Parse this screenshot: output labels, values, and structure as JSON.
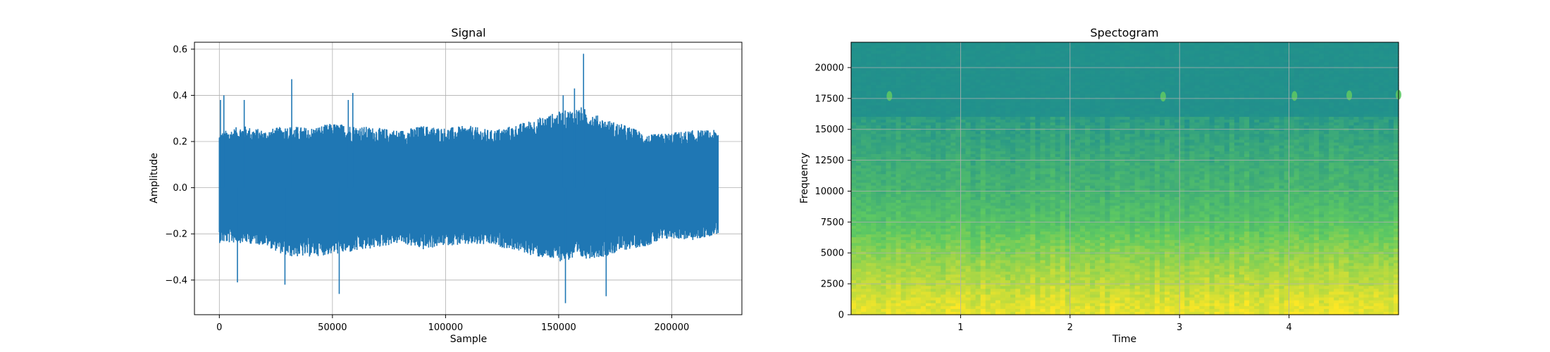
{
  "chart_data": [
    {
      "type": "line",
      "title": "Signal",
      "xlabel": "Sample",
      "ylabel": "Amplitude",
      "xlim": [
        -11000,
        231000
      ],
      "ylim": [
        -0.55,
        0.63
      ],
      "grid": true,
      "xticks": [
        0,
        50000,
        100000,
        150000,
        200000
      ],
      "xtick_labels": [
        "0",
        "50000",
        "100000",
        "150000",
        "200000"
      ],
      "yticks": [
        -0.4,
        -0.2,
        0.0,
        0.2,
        0.4,
        0.6
      ],
      "ytick_labels": [
        "−0.4",
        "−0.2",
        "0.0",
        "0.2",
        "0.4",
        "0.6"
      ],
      "series": [
        {
          "color": "#1f77b4",
          "sample_count": 220500,
          "envelope": {
            "x": [
              0,
              10000,
              20000,
              30000,
              40000,
              50000,
              60000,
              70000,
              80000,
              90000,
              100000,
              110000,
              120000,
              130000,
              140000,
              150000,
              160000,
              170000,
              180000,
              190000,
              200000,
              210000,
              220500
            ],
            "upper": [
              0.24,
              0.27,
              0.25,
              0.27,
              0.26,
              0.28,
              0.27,
              0.26,
              0.25,
              0.27,
              0.26,
              0.27,
              0.25,
              0.27,
              0.3,
              0.33,
              0.35,
              0.3,
              0.27,
              0.23,
              0.24,
              0.25,
              0.25
            ],
            "lower": [
              -0.24,
              -0.24,
              -0.25,
              -0.3,
              -0.3,
              -0.29,
              -0.28,
              -0.26,
              -0.24,
              -0.27,
              -0.25,
              -0.25,
              -0.25,
              -0.27,
              -0.3,
              -0.32,
              -0.31,
              -0.3,
              -0.27,
              -0.25,
              -0.22,
              -0.23,
              -0.2
            ]
          },
          "peaks": [
            {
              "x": 500,
              "y": 0.38
            },
            {
              "x": 2000,
              "y": 0.4
            },
            {
              "x": 11000,
              "y": 0.38
            },
            {
              "x": 32000,
              "y": 0.47
            },
            {
              "x": 57000,
              "y": 0.38
            },
            {
              "x": 59000,
              "y": 0.41
            },
            {
              "x": 152000,
              "y": 0.4
            },
            {
              "x": 157000,
              "y": 0.43
            },
            {
              "x": 161000,
              "y": 0.58
            },
            {
              "x": 8000,
              "y": -0.41
            },
            {
              "x": 29000,
              "y": -0.42
            },
            {
              "x": 53000,
              "y": -0.46
            },
            {
              "x": 153000,
              "y": -0.5
            },
            {
              "x": 171000,
              "y": -0.47
            }
          ]
        }
      ]
    },
    {
      "type": "heatmap",
      "title": "Spectogram",
      "xlabel": "Time",
      "ylabel": "Frequency",
      "xlim": [
        0,
        5
      ],
      "ylim": [
        0,
        22050
      ],
      "grid": true,
      "xticks": [
        1,
        2,
        3,
        4
      ],
      "xtick_labels": [
        "1",
        "2",
        "3",
        "4"
      ],
      "yticks": [
        0,
        2500,
        5000,
        7500,
        10000,
        12500,
        15000,
        17500,
        20000
      ],
      "ytick_labels": [
        "0",
        "2500",
        "5000",
        "7500",
        "10000",
        "12500",
        "15000",
        "17500",
        "20000"
      ],
      "colormap": "viridis",
      "intensity_by_frequency": {
        "frequency": [
          0,
          1000,
          2500,
          5000,
          7500,
          10000,
          12500,
          15000,
          16000,
          16100,
          20000,
          22050
        ],
        "level": [
          0.97,
          0.95,
          0.9,
          0.82,
          0.72,
          0.66,
          0.62,
          0.57,
          0.55,
          0.5,
          0.5,
          0.5
        ]
      },
      "tonal_blips": [
        {
          "time": 0.35,
          "frequency": 17700
        },
        {
          "time": 2.85,
          "frequency": 17650
        },
        {
          "time": 4.05,
          "frequency": 17700
        },
        {
          "time": 4.55,
          "frequency": 17750
        },
        {
          "time": 5.0,
          "frequency": 17800
        }
      ]
    }
  ]
}
